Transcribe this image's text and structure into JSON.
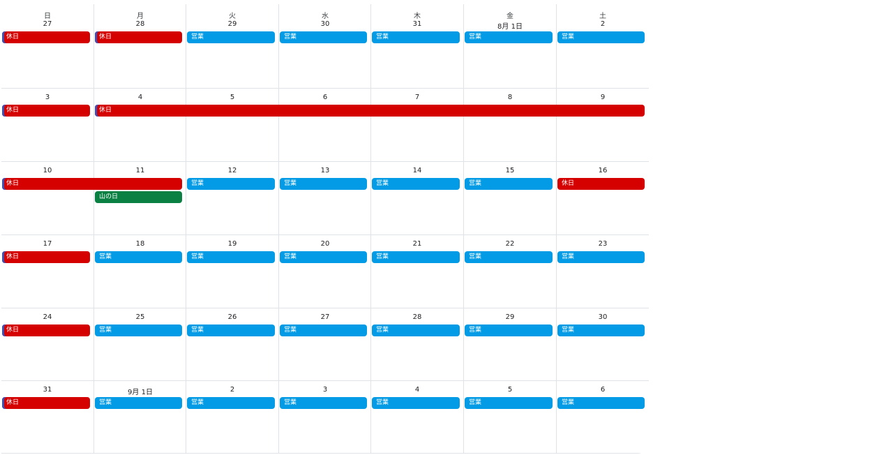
{
  "weekdays": [
    "日",
    "月",
    "火",
    "水",
    "木",
    "金",
    "土"
  ],
  "weeks": [
    {
      "days": [
        "27",
        "28",
        "29",
        "30",
        "31",
        "8月 1日",
        "2"
      ],
      "events": [
        {
          "label": "休日",
          "type": "holiday",
          "start": 0,
          "span": 1,
          "row": 0,
          "marked": true
        },
        {
          "label": "休日",
          "type": "holiday",
          "start": 1,
          "span": 1,
          "row": 0,
          "marked": true
        },
        {
          "label": "営業",
          "type": "open",
          "start": 2,
          "span": 1,
          "row": 0
        },
        {
          "label": "営業",
          "type": "open",
          "start": 3,
          "span": 1,
          "row": 0
        },
        {
          "label": "営業",
          "type": "open",
          "start": 4,
          "span": 1,
          "row": 0
        },
        {
          "label": "営業",
          "type": "open",
          "start": 5,
          "span": 1,
          "row": 0
        },
        {
          "label": "営業",
          "type": "open",
          "start": 6,
          "span": 1,
          "row": 0
        }
      ]
    },
    {
      "days": [
        "3",
        "4",
        "5",
        "6",
        "7",
        "8",
        "9"
      ],
      "events": [
        {
          "label": "休日",
          "type": "holiday",
          "start": 0,
          "span": 1,
          "row": 0,
          "marked": true
        },
        {
          "label": "休日",
          "type": "holiday",
          "start": 1,
          "span": 6,
          "row": 0,
          "marked": true
        }
      ]
    },
    {
      "days": [
        "10",
        "11",
        "12",
        "13",
        "14",
        "15",
        "16"
      ],
      "events": [
        {
          "label": "休日",
          "type": "holiday",
          "start": 0,
          "span": 2,
          "row": 0,
          "marked": true
        },
        {
          "label": "山の日",
          "type": "special",
          "start": 1,
          "span": 1,
          "row": 1
        },
        {
          "label": "営業",
          "type": "open",
          "start": 2,
          "span": 1,
          "row": 0
        },
        {
          "label": "営業",
          "type": "open",
          "start": 3,
          "span": 1,
          "row": 0
        },
        {
          "label": "営業",
          "type": "open",
          "start": 4,
          "span": 1,
          "row": 0
        },
        {
          "label": "営業",
          "type": "open",
          "start": 5,
          "span": 1,
          "row": 0
        },
        {
          "label": "休日",
          "type": "holiday",
          "start": 6,
          "span": 1,
          "row": 0
        }
      ]
    },
    {
      "days": [
        "17",
        "18",
        "19",
        "20",
        "21",
        "22",
        "23"
      ],
      "events": [
        {
          "label": "休日",
          "type": "holiday",
          "start": 0,
          "span": 1,
          "row": 0,
          "marked": true
        },
        {
          "label": "営業",
          "type": "open",
          "start": 1,
          "span": 1,
          "row": 0
        },
        {
          "label": "営業",
          "type": "open",
          "start": 2,
          "span": 1,
          "row": 0
        },
        {
          "label": "営業",
          "type": "open",
          "start": 3,
          "span": 1,
          "row": 0
        },
        {
          "label": "営業",
          "type": "open",
          "start": 4,
          "span": 1,
          "row": 0
        },
        {
          "label": "営業",
          "type": "open",
          "start": 5,
          "span": 1,
          "row": 0
        },
        {
          "label": "営業",
          "type": "open",
          "start": 6,
          "span": 1,
          "row": 0
        }
      ]
    },
    {
      "days": [
        "24",
        "25",
        "26",
        "27",
        "28",
        "29",
        "30"
      ],
      "events": [
        {
          "label": "休日",
          "type": "holiday",
          "start": 0,
          "span": 1,
          "row": 0,
          "marked": true
        },
        {
          "label": "営業",
          "type": "open",
          "start": 1,
          "span": 1,
          "row": 0
        },
        {
          "label": "営業",
          "type": "open",
          "start": 2,
          "span": 1,
          "row": 0
        },
        {
          "label": "営業",
          "type": "open",
          "start": 3,
          "span": 1,
          "row": 0
        },
        {
          "label": "営業",
          "type": "open",
          "start": 4,
          "span": 1,
          "row": 0
        },
        {
          "label": "営業",
          "type": "open",
          "start": 5,
          "span": 1,
          "row": 0
        },
        {
          "label": "営業",
          "type": "open",
          "start": 6,
          "span": 1,
          "row": 0
        }
      ]
    },
    {
      "days": [
        "31",
        "9月 1日",
        "2",
        "3",
        "4",
        "5",
        "6"
      ],
      "events": [
        {
          "label": "休日",
          "type": "holiday",
          "start": 0,
          "span": 1,
          "row": 0,
          "marked": true
        },
        {
          "label": "営業",
          "type": "open",
          "start": 1,
          "span": 1,
          "row": 0
        },
        {
          "label": "営業",
          "type": "open",
          "start": 2,
          "span": 1,
          "row": 0
        },
        {
          "label": "営業",
          "type": "open",
          "start": 3,
          "span": 1,
          "row": 0
        },
        {
          "label": "営業",
          "type": "open",
          "start": 4,
          "span": 1,
          "row": 0
        },
        {
          "label": "営業",
          "type": "open",
          "start": 5,
          "span": 1,
          "row": 0
        },
        {
          "label": "営業",
          "type": "open",
          "start": 6,
          "span": 1,
          "row": 0
        }
      ]
    }
  ],
  "colors": {
    "holiday": "#d50000",
    "open": "#039be5",
    "special": "#0b8043",
    "grid_line": "#dfe3e8"
  }
}
